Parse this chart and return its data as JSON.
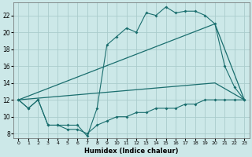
{
  "xlabel": "Humidex (Indice chaleur)",
  "background_color": "#cce8e8",
  "grid_color": "#aacccc",
  "line_color": "#1a6e6e",
  "xlim": [
    -0.5,
    23.5
  ],
  "ylim": [
    7.5,
    23.5
  ],
  "yticks": [
    8,
    10,
    12,
    14,
    16,
    18,
    20,
    22
  ],
  "xticks": [
    0,
    1,
    2,
    3,
    4,
    5,
    6,
    7,
    8,
    9,
    10,
    11,
    12,
    13,
    14,
    15,
    16,
    17,
    18,
    19,
    20,
    21,
    22,
    23
  ],
  "line1_x": [
    0,
    1,
    2,
    3,
    4,
    5,
    6,
    7,
    8,
    9,
    10,
    11,
    12,
    13,
    14,
    15,
    16,
    17,
    18,
    19,
    20,
    21,
    22,
    23
  ],
  "line1_y": [
    12,
    11,
    12,
    9,
    9,
    9,
    9,
    7.7,
    11,
    18.5,
    19.5,
    20.5,
    20,
    22.3,
    22,
    23,
    22.3,
    22.5,
    22.5,
    22,
    21,
    16,
    13.5,
    12
  ],
  "line2_x": [
    0,
    20,
    23
  ],
  "line2_y": [
    12,
    21,
    12
  ],
  "line3_x": [
    0,
    20,
    23
  ],
  "line3_y": [
    12,
    14,
    12
  ],
  "line4_x": [
    0,
    1,
    2,
    3,
    4,
    5,
    6,
    7,
    8,
    9,
    10,
    11,
    12,
    13,
    14,
    15,
    16,
    17,
    18,
    19,
    20,
    21,
    22,
    23
  ],
  "line4_y": [
    12,
    11,
    12,
    9,
    9,
    8.5,
    8.5,
    8,
    9,
    9.5,
    10,
    10,
    10.5,
    10.5,
    11,
    11,
    11,
    11.5,
    11.5,
    12,
    12,
    12,
    12,
    12
  ]
}
